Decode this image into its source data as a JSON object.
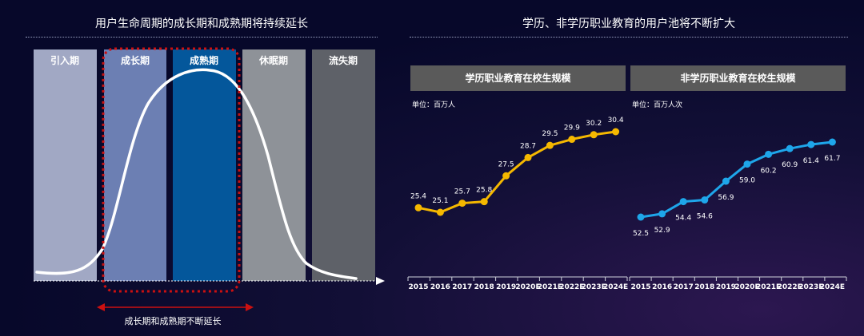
{
  "left_panel": {
    "title": "用户生命周期的成长期和成熟期将持续延长",
    "stages": [
      {
        "label": "引入期",
        "color": "#a1a8c4"
      },
      {
        "label": "成长期",
        "color": "#6c7fb3"
      },
      {
        "label": "成熟期",
        "color": "#04579b"
      },
      {
        "label": "休眠期",
        "color": "#8e9298"
      },
      {
        "label": "流失期",
        "color": "#5e6168"
      }
    ],
    "note": "成长期和成熟期不断延长",
    "highlight_color": "#cc1010"
  },
  "right_panel": {
    "title": "学历、非学历职业教育的用户池将不断扩大"
  },
  "chart_data": [
    {
      "type": "line",
      "title": "学历职业教育在校生规模",
      "unit": "单位：百万人",
      "categories": [
        "2015",
        "2016",
        "2017",
        "2018",
        "2019",
        "2020E",
        "2021E",
        "2022E",
        "2023E",
        "2024E"
      ],
      "values": [
        25.4,
        25.1,
        25.7,
        25.8,
        27.5,
        28.7,
        29.5,
        29.9,
        30.2,
        30.4
      ],
      "color": "#f5b800",
      "ylim": [
        24.0,
        31.0
      ]
    },
    {
      "type": "line",
      "title": "非学历职业教育在校生规模",
      "unit": "单位：百万人次",
      "categories": [
        "2015",
        "2016",
        "2017",
        "2018",
        "2019",
        "2020E",
        "2021E",
        "2022E",
        "2023E",
        "2024E"
      ],
      "values": [
        52.5,
        52.9,
        54.4,
        54.6,
        56.9,
        59.0,
        60.2,
        60.9,
        61.4,
        61.7
      ],
      "color": "#1ea6ea",
      "ylim": [
        50.0,
        63.0
      ]
    }
  ]
}
